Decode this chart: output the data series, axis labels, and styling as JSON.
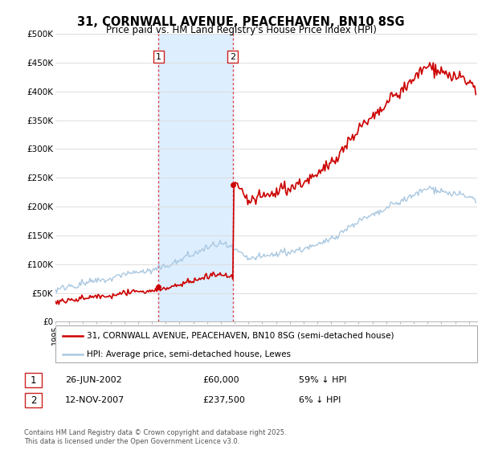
{
  "title": "31, CORNWALL AVENUE, PEACEHAVEN, BN10 8SG",
  "subtitle": "Price paid vs. HM Land Registry's House Price Index (HPI)",
  "ylim": [
    0,
    500000
  ],
  "yticks": [
    0,
    50000,
    100000,
    150000,
    200000,
    250000,
    300000,
    350000,
    400000,
    450000,
    500000
  ],
  "ytick_labels": [
    "£0",
    "£50K",
    "£100K",
    "£150K",
    "£200K",
    "£250K",
    "£300K",
    "£350K",
    "£400K",
    "£450K",
    "£500K"
  ],
  "hpi_color": "#aac8e0",
  "price_color": "#cc0000",
  "vline_color": "#dd4444",
  "shade_color": "#ddeeff",
  "transaction1_date": 2002.48,
  "transaction1_price": 60000,
  "transaction2_date": 2007.87,
  "transaction2_price": 237500,
  "legend_label_property": "31, CORNWALL AVENUE, PEACEHAVEN, BN10 8SG (semi-detached house)",
  "legend_label_hpi": "HPI: Average price, semi-detached house, Lewes",
  "table_row1": [
    "1",
    "26-JUN-2002",
    "£60,000",
    "59% ↓ HPI"
  ],
  "table_row2": [
    "2",
    "12-NOV-2007",
    "£237,500",
    "6% ↓ HPI"
  ],
  "footer": "Contains HM Land Registry data © Crown copyright and database right 2025.\nThis data is licensed under the Open Government Licence v3.0.",
  "background_color": "#ffffff",
  "grid_color": "#dddddd"
}
